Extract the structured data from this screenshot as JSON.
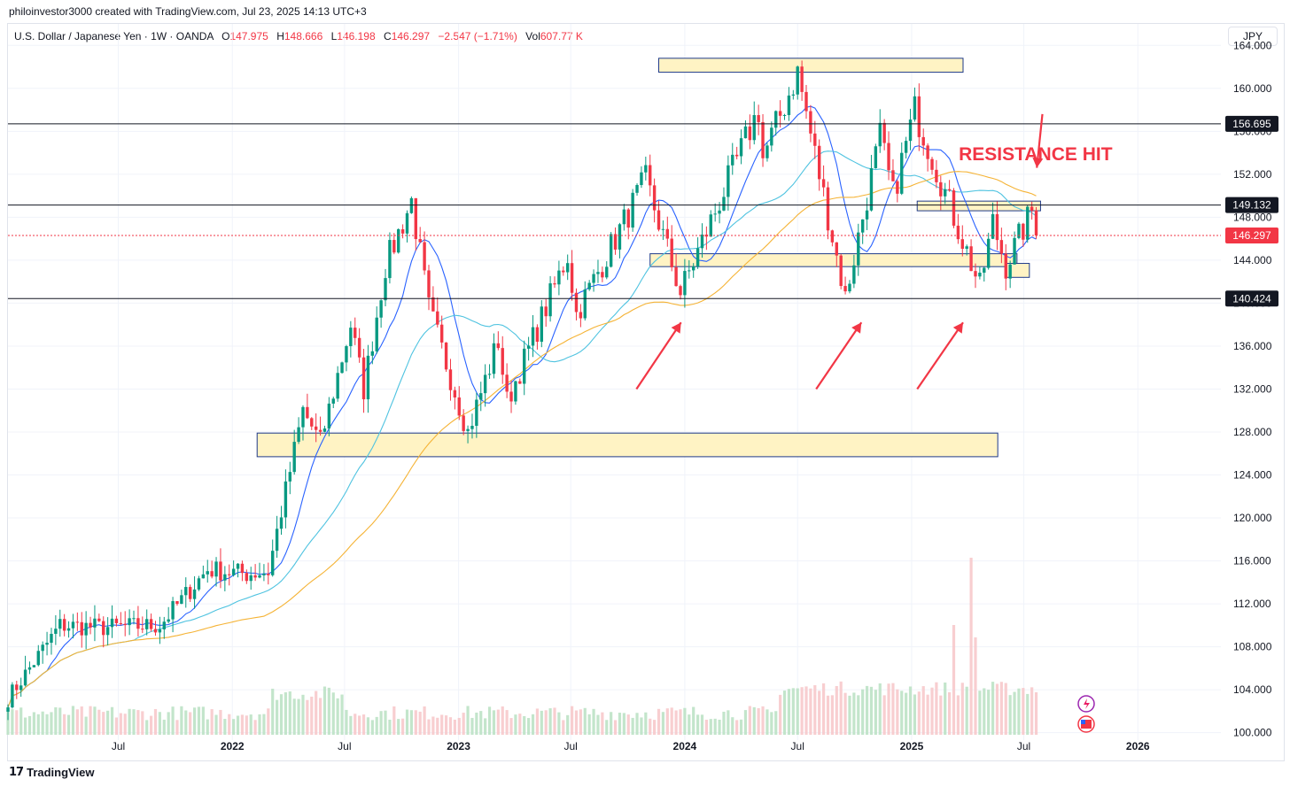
{
  "header": {
    "credit": "philoinvestor3000 created with TradingView.com, Jul 23, 2025 14:13 UTC+3"
  },
  "legend": {
    "symbol": "U.S. Dollar / Japanese Yen · 1W · OANDA",
    "o_label": "O",
    "o_value": "147.975",
    "h_label": "H",
    "h_value": "148.666",
    "l_label": "L",
    "l_value": "146.198",
    "c_label": "C",
    "c_value": "146.297",
    "change": "−2.547 (−1.71%)",
    "vol_label": "Vol",
    "vol_value": "607.77 K"
  },
  "currency": "JPY",
  "footer": {
    "brand": "TradingView"
  },
  "colors": {
    "up": "#089981",
    "down": "#f23645",
    "zone_fill": "#fff3c4",
    "zone_stroke": "#1e3a8a",
    "ma_fast": "#2962ff",
    "ma_mid": "#4fc3e0",
    "ma_slow": "#f5b335",
    "arrow": "#f23645"
  },
  "chart_data": {
    "type": "candlestick",
    "symbol": "USDJPY",
    "interval": "1W",
    "y_axis": {
      "ticks": [
        "164.000",
        "160.000",
        "156.000",
        "152.000",
        "148.000",
        "144.000",
        "140.000",
        "136.000",
        "132.000",
        "128.000",
        "124.000",
        "120.000",
        "116.000",
        "112.000",
        "108.000",
        "104.000",
        "100.000"
      ],
      "range": [
        97.5,
        166.0
      ]
    },
    "x_axis": {
      "labels": [
        "Jul",
        "2022",
        "Jul",
        "2023",
        "Jul",
        "2024",
        "Jul",
        "2025",
        "Jul",
        "2026"
      ],
      "dates": [
        "2021-07-01",
        "2022-01-01",
        "2022-07-01",
        "2023-01-01",
        "2023-07-01",
        "2024-01-01",
        "2024-07-01",
        "2025-01-01",
        "2025-07-01",
        "2026-01-01"
      ],
      "range": [
        "2021-01-04",
        "2026-05-15"
      ]
    },
    "horizontal_levels": [
      {
        "value": 156.695,
        "label": "156.695"
      },
      {
        "value": 149.132,
        "label": "149.132"
      },
      {
        "value": 146.297,
        "label": "146.297",
        "current": true
      },
      {
        "value": 140.424,
        "label": "140.424"
      }
    ],
    "zones": [
      {
        "from": "2023-11-20",
        "to": "2025-03-25",
        "low": 161.5,
        "high": 162.8
      },
      {
        "from": "2025-01-10",
        "to": "2025-07-28",
        "low": 148.6,
        "high": 149.5
      },
      {
        "from": "2023-11-06",
        "to": "2025-06-20",
        "low": 143.4,
        "high": 144.6
      },
      {
        "from": "2025-06-01",
        "to": "2025-07-10",
        "low": 142.4,
        "high": 143.7
      },
      {
        "from": "2022-02-10",
        "to": "2025-05-20",
        "low": 125.7,
        "high": 127.9
      }
    ],
    "annotations": [
      {
        "text": "RESISTANCE HIT",
        "date": "2025-07-20",
        "value": 153.3
      }
    ],
    "arrows": [
      {
        "from_date": "2023-10-15",
        "from_value": 132.0,
        "to_date": "2023-12-26",
        "to_value": 138.2
      },
      {
        "from_date": "2024-07-31",
        "from_value": 132.0,
        "to_date": "2024-10-12",
        "to_value": 138.2
      },
      {
        "from_date": "2025-01-10",
        "from_value": 132.0,
        "to_date": "2025-03-25",
        "to_value": 138.2
      },
      {
        "from_date": "2025-07-31",
        "from_value": 157.6,
        "to_date": "2025-07-22",
        "to_value": 152.6
      }
    ],
    "ohlc_waypoints": [
      {
        "date": "2021-01-04",
        "value": 103.2
      },
      {
        "date": "2021-03-29",
        "value": 110.0
      },
      {
        "date": "2021-06-07",
        "value": 109.8
      },
      {
        "date": "2021-09-06",
        "value": 110.0
      },
      {
        "date": "2021-11-22",
        "value": 115.2
      },
      {
        "date": "2022-01-24",
        "value": 114.8
      },
      {
        "date": "2022-02-28",
        "value": 115.0
      },
      {
        "date": "2022-04-25",
        "value": 130.0
      },
      {
        "date": "2022-05-23",
        "value": 127.0
      },
      {
        "date": "2022-07-11",
        "value": 138.0
      },
      {
        "date": "2022-08-01",
        "value": 132.0
      },
      {
        "date": "2022-09-05",
        "value": 143.5
      },
      {
        "date": "2022-10-17",
        "value": 149.5
      },
      {
        "date": "2022-11-14",
        "value": 139.5
      },
      {
        "date": "2023-01-16",
        "value": 128.0
      },
      {
        "date": "2023-03-06",
        "value": 136.5
      },
      {
        "date": "2023-03-20",
        "value": 130.8
      },
      {
        "date": "2023-06-26",
        "value": 144.5
      },
      {
        "date": "2023-07-10",
        "value": 139.0
      },
      {
        "date": "2023-10-30",
        "value": 151.5
      },
      {
        "date": "2023-12-25",
        "value": 141.0
      },
      {
        "date": "2024-04-29",
        "value": 158.0
      },
      {
        "date": "2024-05-06",
        "value": 153.5
      },
      {
        "date": "2024-07-01",
        "value": 161.5
      },
      {
        "date": "2024-09-16",
        "value": 140.5
      },
      {
        "date": "2024-11-11",
        "value": 155.5
      },
      {
        "date": "2024-12-02",
        "value": 150.0
      },
      {
        "date": "2025-01-06",
        "value": 158.0
      },
      {
        "date": "2025-04-21",
        "value": 141.5
      },
      {
        "date": "2025-05-12",
        "value": 147.5
      },
      {
        "date": "2025-06-02",
        "value": 143.5
      },
      {
        "date": "2025-07-14",
        "value": 148.6
      },
      {
        "date": "2025-07-21",
        "value": 146.297
      }
    ],
    "moving_averages": [
      {
        "id": "ma_fast",
        "color": "#2962ff",
        "period": 10
      },
      {
        "id": "ma_mid",
        "color": "#4fc3e0",
        "period": 30
      },
      {
        "id": "ma_slow",
        "color": "#f5b335",
        "period": 60
      }
    ],
    "volume_spike_weeks": [
      {
        "date": "2025-04-07",
        "relative": 1.0
      },
      {
        "date": "2025-03-10",
        "relative": 0.62
      },
      {
        "date": "2025-04-14",
        "relative": 0.55
      }
    ],
    "grid": true
  }
}
